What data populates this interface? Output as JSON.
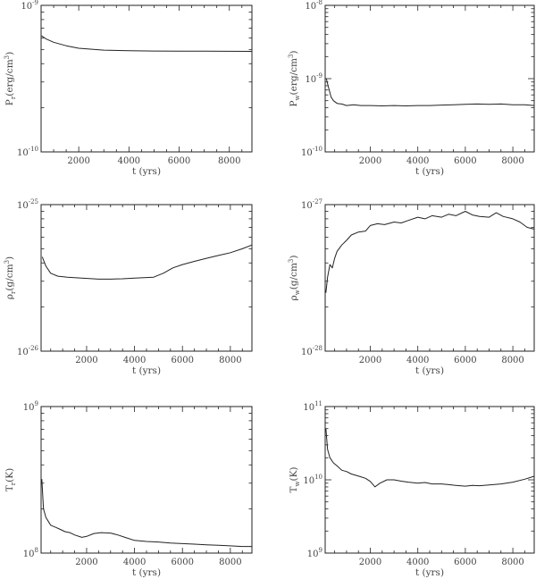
{
  "chart_data": [
    {
      "type": "line",
      "title": "",
      "xlabel": "t (yrs)",
      "ylabel": "P_r (erg/cm³)",
      "ylabel_parts": {
        "main": "P",
        "sub": "r",
        "rest": "(erg/cm",
        "sup": "3",
        "end": ")"
      },
      "yscale": "log",
      "ylim": [
        1e-10,
        1e-09
      ],
      "xlim": [
        500,
        8900
      ],
      "xticks": [
        2000,
        4000,
        6000,
        8000
      ],
      "xtick_labels": [
        "2000",
        "4000",
        "6000",
        "8000"
      ],
      "ytick_labels": [
        {
          "base": "10",
          "exp": "-9"
        },
        {
          "base": "10",
          "exp": "-10"
        }
      ],
      "x": [
        520,
        700,
        1000,
        1500,
        2000,
        3000,
        4000,
        5000,
        6000,
        7000,
        8000,
        8900
      ],
      "y": [
        6.2e-10,
        5.9e-10,
        5.6e-10,
        5.3e-10,
        5.1e-10,
        4.95e-10,
        4.9e-10,
        4.88e-10,
        4.87e-10,
        4.87e-10,
        4.86e-10,
        4.85e-10
      ]
    },
    {
      "type": "line",
      "title": "",
      "xlabel": "t (yrs)",
      "ylabel": "P_w (erg/cm³)",
      "ylabel_parts": {
        "main": "P",
        "sub": "w",
        "rest": "(erg/cm",
        "sup": "3",
        "end": ")"
      },
      "yscale": "log",
      "ylim": [
        1e-10,
        1e-08
      ],
      "xlim": [
        100,
        8900
      ],
      "xticks": [
        2000,
        4000,
        6000,
        8000
      ],
      "xtick_labels": [
        "2000",
        "4000",
        "6000",
        "8000"
      ],
      "ytick_labels": [
        {
          "base": "10",
          "exp": "-8"
        },
        {
          "base": "10",
          "exp": "-9"
        },
        {
          "base": "10",
          "exp": "-10"
        }
      ],
      "x": [
        150,
        250,
        350,
        450,
        600,
        800,
        1000,
        1300,
        1600,
        2000,
        2500,
        3000,
        3500,
        4000,
        4500,
        5000,
        5500,
        6000,
        6500,
        7000,
        7500,
        8000,
        8500,
        8900
      ],
      "y": [
        1e-09,
        7.4e-10,
        5.6e-10,
        5e-10,
        4.6e-10,
        4.5e-10,
        4.3e-10,
        4.4e-10,
        4.3e-10,
        4.3e-10,
        4.25e-10,
        4.3e-10,
        4.25e-10,
        4.3e-10,
        4.3e-10,
        4.35e-10,
        4.4e-10,
        4.45e-10,
        4.5e-10,
        4.45e-10,
        4.5e-10,
        4.4e-10,
        4.4e-10,
        4.3e-10
      ]
    },
    {
      "type": "line",
      "title": "",
      "xlabel": "t (yrs)",
      "ylabel": "ρ_r (g/cm³)",
      "ylabel_parts": {
        "main": "ρ",
        "sub": "r",
        "rest": "(g/cm",
        "sup": "3",
        "end": ")"
      },
      "yscale": "log",
      "ylim": [
        1e-26,
        1e-25
      ],
      "xlim": [
        100,
        8900
      ],
      "xticks": [
        2000,
        4000,
        6000,
        8000
      ],
      "xtick_labels": [
        "2000",
        "4000",
        "6000",
        "8000"
      ],
      "ytick_labels": [
        {
          "base": "10",
          "exp": "-25"
        },
        {
          "base": "10",
          "exp": "-26"
        }
      ],
      "x": [
        150,
        300,
        500,
        800,
        1200,
        1800,
        2500,
        3000,
        3500,
        4000,
        4500,
        4800,
        5200,
        5600,
        6000,
        6500,
        7000,
        7500,
        8000,
        8500,
        8900
      ],
      "y": [
        4.4e-26,
        3.8e-26,
        3.4e-26,
        3.25e-26,
        3.2e-26,
        3.15e-26,
        3.1e-26,
        3.1e-26,
        3.12e-26,
        3.15e-26,
        3.18e-26,
        3.2e-26,
        3.4e-26,
        3.7e-26,
        3.9e-26,
        4.1e-26,
        4.3e-26,
        4.5e-26,
        4.7e-26,
        5e-26,
        5.3e-26
      ]
    },
    {
      "type": "line",
      "title": "",
      "xlabel": "t (yrs)",
      "ylabel": "ρ_w (g/cm³)",
      "ylabel_parts": {
        "main": "ρ",
        "sub": "w",
        "rest": "(g/cm",
        "sup": "3",
        "end": ")"
      },
      "yscale": "log",
      "ylim": [
        1e-28,
        1e-27
      ],
      "xlim": [
        100,
        8900
      ],
      "xticks": [
        2000,
        4000,
        6000,
        8000
      ],
      "xtick_labels": [
        "2000",
        "4000",
        "6000",
        "8000"
      ],
      "ytick_labels": [
        {
          "base": "10",
          "exp": "-27"
        },
        {
          "base": "10",
          "exp": "-28"
        }
      ],
      "x": [
        130,
        200,
        300,
        400,
        500,
        600,
        800,
        1000,
        1200,
        1500,
        1800,
        2000,
        2300,
        2600,
        3000,
        3300,
        3600,
        4000,
        4300,
        4600,
        5000,
        5300,
        5600,
        6000,
        6300,
        6600,
        7000,
        7300,
        7600,
        8000,
        8300,
        8600,
        8900
      ],
      "y": [
        2.5e-28,
        3.2e-28,
        3.9e-28,
        3.7e-28,
        4.3e-28,
        4.8e-28,
        5.3e-28,
        5.7e-28,
        6.2e-28,
        6.5e-28,
        6.6e-28,
        7.2e-28,
        7.4e-28,
        7.3e-28,
        7.6e-28,
        7.5e-28,
        7.8e-28,
        8.2e-28,
        8e-28,
        8.4e-28,
        8.2e-28,
        8.6e-28,
        8.4e-28,
        9e-28,
        8.5e-28,
        8.3e-28,
        8.2e-28,
        8.8e-28,
        8.3e-28,
        8e-28,
        7.6e-28,
        7e-28,
        6.8e-28
      ]
    },
    {
      "type": "line",
      "title": "",
      "xlabel": "t (yrs)",
      "ylabel": "T_r (K)",
      "ylabel_parts": {
        "main": "T",
        "sub": "r",
        "rest": "(K)",
        "sup": "",
        "end": ""
      },
      "yscale": "log",
      "ylim": [
        100000000.0,
        1000000000.0
      ],
      "xlim": [
        100,
        8900
      ],
      "xticks": [
        2000,
        4000,
        6000,
        8000
      ],
      "xtick_labels": [
        "2000",
        "4000",
        "6000",
        "8000"
      ],
      "ytick_labels": [
        {
          "base": "10",
          "exp": "9"
        },
        {
          "base": "10",
          "exp": "8"
        }
      ],
      "x": [
        130,
        200,
        300,
        400,
        500,
        700,
        900,
        1100,
        1300,
        1500,
        1800,
        2000,
        2300,
        2600,
        3000,
        3300,
        3600,
        4000,
        4500,
        5000,
        5500,
        6000,
        6500,
        7000,
        7500,
        8000,
        8500,
        8900
      ],
      "y": [
        320000000.0,
        200000000.0,
        175000000.0,
        165000000.0,
        155000000.0,
        150000000.0,
        145000000.0,
        140000000.0,
        138000000.0,
        133000000.0,
        128000000.0,
        130000000.0,
        136000000.0,
        138000000.0,
        137000000.0,
        133000000.0,
        128000000.0,
        122000000.0,
        120000000.0,
        119000000.0,
        117000000.0,
        116000000.0,
        115000000.0,
        114000000.0,
        113000000.0,
        112000000.0,
        111000000.0,
        111000000.0
      ]
    },
    {
      "type": "line",
      "title": "",
      "xlabel": "t (yrs)",
      "ylabel": "T_w (K)",
      "ylabel_parts": {
        "main": "T",
        "sub": "w",
        "rest": "(K)",
        "sup": "",
        "end": ""
      },
      "yscale": "log",
      "ylim": [
        1000000000.0,
        100000000000.0
      ],
      "xlim": [
        100,
        8900
      ],
      "xticks": [
        2000,
        4000,
        6000,
        8000
      ],
      "xtick_labels": [
        "2000",
        "4000",
        "6000",
        "8000"
      ],
      "ytick_labels": [
        {
          "base": "10",
          "exp": "11"
        },
        {
          "base": "10",
          "exp": "10"
        },
        {
          "base": "10",
          "exp": "9"
        }
      ],
      "x": [
        130,
        200,
        300,
        450,
        600,
        800,
        1000,
        1200,
        1400,
        1600,
        1800,
        2000,
        2200,
        2400,
        2700,
        3000,
        3300,
        3600,
        4000,
        4300,
        4600,
        5000,
        5300,
        5600,
        6000,
        6300,
        6600,
        7000,
        7500,
        8000,
        8500,
        8900
      ],
      "y": [
        50000000000.0,
        26000000000.0,
        20000000000.0,
        17000000000.0,
        15500000000.0,
        13500000000.0,
        13000000000.0,
        12000000000.0,
        11500000000.0,
        11000000000.0,
        10500000000.0,
        9500000000.0,
        8000000000.0,
        9000000000.0,
        10000000000.0,
        10000000000.0,
        9600000000.0,
        9300000000.0,
        9000000000.0,
        9200000000.0,
        8800000000.0,
        8800000000.0,
        8600000000.0,
        8400000000.0,
        8200000000.0,
        8400000000.0,
        8300000000.0,
        8500000000.0,
        8800000000.0,
        9300000000.0,
        10200000000.0,
        11200000000.0
      ]
    }
  ]
}
